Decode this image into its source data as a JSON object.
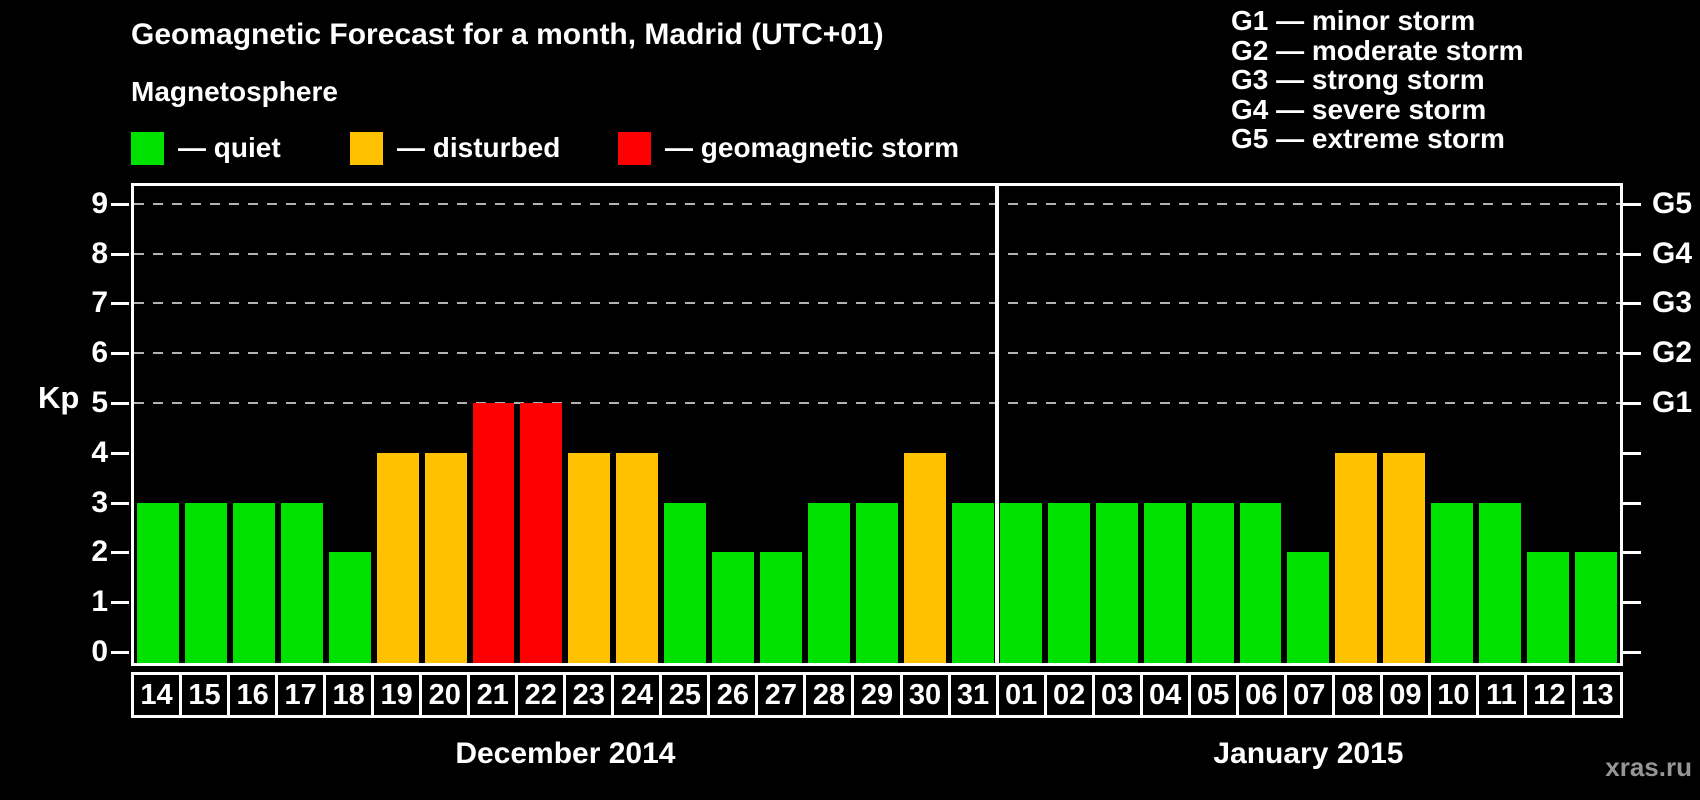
{
  "header": {
    "title": "Geomagnetic Forecast for a month, Madrid (UTC+01)"
  },
  "legend": {
    "title": "Magnetosphere",
    "items": [
      {
        "state": "quiet",
        "label": "— quiet",
        "color": "#00e100"
      },
      {
        "state": "disturbed",
        "label": "— disturbed",
        "color": "#ffc100"
      },
      {
        "state": "storm",
        "label": "— geomagnetic storm",
        "color": "#fe0000"
      }
    ]
  },
  "g_legend": [
    "G1 — minor storm",
    "G2 — moderate storm",
    "G3 — strong storm",
    "G4 — severe storm",
    "G5 — extreme storm"
  ],
  "axis": {
    "left_label": "Kp",
    "left_ticks": [
      "0",
      "1",
      "2",
      "3",
      "4",
      "5",
      "6",
      "7",
      "8",
      "9"
    ],
    "right_labels": [
      {
        "kp": 5,
        "label": "G1"
      },
      {
        "kp": 6,
        "label": "G2"
      },
      {
        "kp": 7,
        "label": "G3"
      },
      {
        "kp": 8,
        "label": "G4"
      },
      {
        "kp": 9,
        "label": "G5"
      }
    ],
    "grid_levels": [
      5,
      6,
      7,
      8,
      9
    ],
    "ylim": [
      0,
      9
    ]
  },
  "chart_data": {
    "type": "bar",
    "title": "Geomagnetic Forecast for a month, Madrid (UTC+01)",
    "ylabel": "Kp",
    "ylim": [
      0,
      9
    ],
    "grid": "dashed horizontal at Kp 5-9 (G1-G5 thresholds)",
    "legend_position": "top-left",
    "groups": [
      {
        "month": "December 2014",
        "days": [
          "14",
          "15",
          "16",
          "17",
          "18",
          "19",
          "20",
          "21",
          "22",
          "23",
          "24",
          "25",
          "26",
          "27",
          "28",
          "29",
          "30",
          "31"
        ],
        "values": [
          3,
          3,
          3,
          3,
          2,
          4,
          4,
          5,
          5,
          4,
          4,
          3,
          2,
          2,
          3,
          3,
          4,
          3
        ],
        "states": [
          "quiet",
          "quiet",
          "quiet",
          "quiet",
          "quiet",
          "disturbed",
          "disturbed",
          "storm",
          "storm",
          "disturbed",
          "disturbed",
          "quiet",
          "quiet",
          "quiet",
          "quiet",
          "quiet",
          "disturbed",
          "quiet"
        ]
      },
      {
        "month": "January 2015",
        "days": [
          "01",
          "02",
          "03",
          "04",
          "05",
          "06",
          "07",
          "08",
          "09",
          "10",
          "11",
          "12",
          "13"
        ],
        "values": [
          3,
          3,
          3,
          3,
          3,
          3,
          2,
          4,
          4,
          3,
          3,
          2,
          2
        ],
        "states": [
          "quiet",
          "quiet",
          "quiet",
          "quiet",
          "quiet",
          "quiet",
          "quiet",
          "disturbed",
          "disturbed",
          "quiet",
          "quiet",
          "quiet",
          "quiet"
        ]
      }
    ]
  },
  "colors": {
    "quiet": "#00e100",
    "disturbed": "#ffc100",
    "storm": "#fe0000",
    "grid": "#b2b2b2",
    "axis": "#ffffff"
  },
  "watermark": "xras.ru"
}
